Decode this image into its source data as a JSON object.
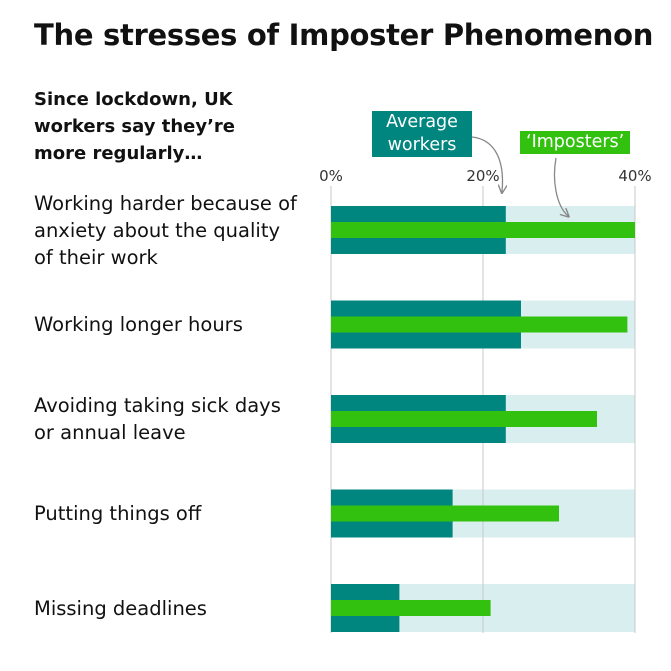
{
  "title": "The stresses of Imposter Phenomenon",
  "subtitle": "Since lockdown, UK workers say they’re more regularly…",
  "legend": {
    "average": "Average workers",
    "imposters": "‘Imposters’"
  },
  "colors": {
    "average": "#00857f",
    "imposters": "#33c10f",
    "track": "#d9eeee",
    "grid": "#c8c8c8",
    "arrow": "#888888"
  },
  "chart_data": {
    "type": "bar",
    "orientation": "horizontal",
    "title": "The stresses of Imposter Phenomenon",
    "subtitle": "Since lockdown, UK workers say they’re more regularly…",
    "categories": [
      "Working harder because of anxiety about the quality of their work",
      "Working longer hours",
      "Avoiding taking sick days or annual leave",
      "Putting things off",
      "Missing deadlines"
    ],
    "series": [
      {
        "name": "Average workers",
        "values": [
          23,
          25,
          23,
          16,
          9
        ]
      },
      {
        "name": "‘Imposters’",
        "values": [
          40,
          39,
          35,
          30,
          21
        ]
      }
    ],
    "xlim": [
      0,
      40
    ],
    "xticks": [
      "0%",
      "20%",
      "40%"
    ],
    "xtick_values": [
      0,
      20,
      40
    ],
    "grid": true,
    "legend_position": "top-right"
  }
}
